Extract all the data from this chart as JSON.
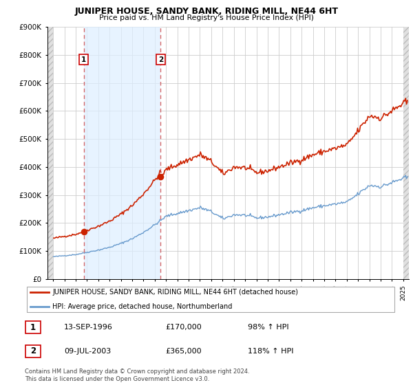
{
  "title": "JUNIPER HOUSE, SANDY BANK, RIDING MILL, NE44 6HT",
  "subtitle": "Price paid vs. HM Land Registry's House Price Index (HPI)",
  "ylim": [
    0,
    900000
  ],
  "yticks": [
    0,
    100000,
    200000,
    300000,
    400000,
    500000,
    600000,
    700000,
    800000,
    900000
  ],
  "ytick_labels": [
    "£0",
    "£100K",
    "£200K",
    "£300K",
    "£400K",
    "£500K",
    "£600K",
    "£700K",
    "£800K",
    "£900K"
  ],
  "xlim_left": 1993.5,
  "xlim_right": 2025.5,
  "hpi_color": "#6699cc",
  "price_color": "#cc2200",
  "marker_color": "#cc2200",
  "dashed_line_color": "#cc4444",
  "shade_color": "#ddeeff",
  "hatch_color": "#cccccc",
  "grid_color": "#cccccc",
  "t1_x": 1996.71,
  "t1_price": 170000,
  "t2_x": 2003.52,
  "t2_price": 365000,
  "legend_entries": [
    "JUNIPER HOUSE, SANDY BANK, RIDING MILL, NE44 6HT (detached house)",
    "HPI: Average price, detached house, Northumberland"
  ],
  "table_rows": [
    {
      "num": "1",
      "date": "13-SEP-1996",
      "price": "£170,000",
      "hpi": "98% ↑ HPI"
    },
    {
      "num": "2",
      "date": "09-JUL-2003",
      "price": "£365,000",
      "hpi": "118% ↑ HPI"
    }
  ],
  "footnote": "Contains HM Land Registry data © Crown copyright and database right 2024.\nThis data is licensed under the Open Government Licence v3.0."
}
